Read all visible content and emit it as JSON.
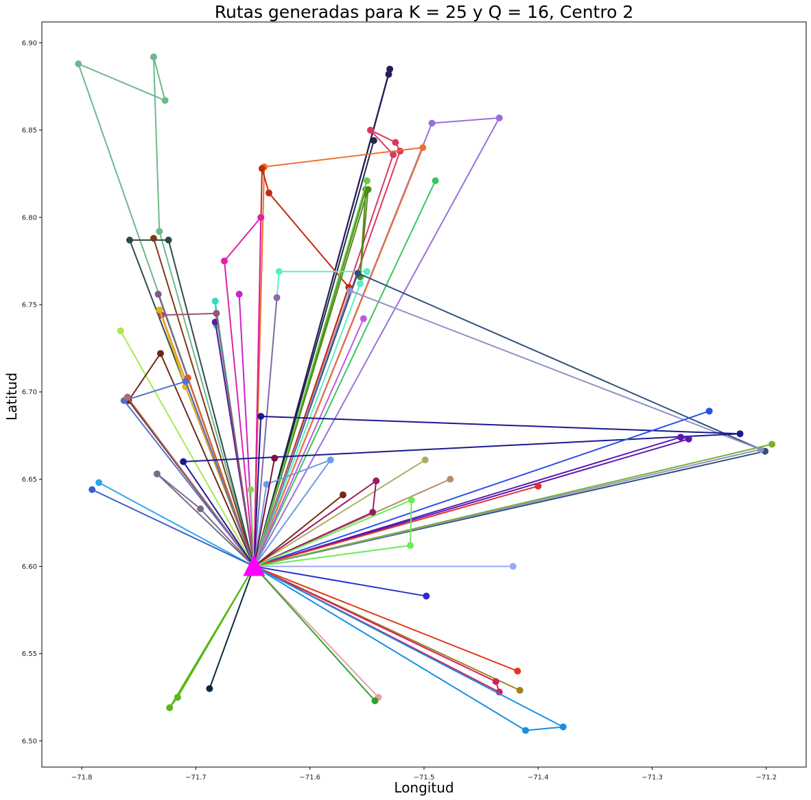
{
  "chart_data": {
    "type": "line",
    "title": "Rutas generadas para K = 25 y Q = 16, Centro 2",
    "xlabel": "Longitud",
    "ylabel": "Latitud",
    "xlim": [
      -71.835,
      -71.165
    ],
    "ylim": [
      6.485,
      6.912
    ],
    "xticks": [
      -71.8,
      -71.7,
      -71.6,
      -71.5,
      -71.4,
      -71.3,
      -71.2
    ],
    "xtick_labels": [
      "−71.8",
      "−71.7",
      "−71.6",
      "−71.5",
      "−71.4",
      "−71.3",
      "−71.2"
    ],
    "yticks": [
      6.5,
      6.55,
      6.6,
      6.65,
      6.7,
      6.75,
      6.8,
      6.85,
      6.9
    ],
    "ytick_labels": [
      "6.50",
      "6.55",
      "6.60",
      "6.65",
      "6.70",
      "6.75",
      "6.80",
      "6.85",
      "6.90"
    ],
    "grid": false,
    "depot": {
      "x": -71.649,
      "y": 6.6,
      "color": "#ff00ff"
    },
    "routes": [
      {
        "color": "#6db88a",
        "points": [
          [
            -71.732,
            6.792
          ],
          [
            -71.737,
            6.892
          ],
          [
            -71.727,
            6.867
          ],
          [
            -71.803,
            6.888
          ]
        ]
      },
      {
        "color": "#2b4a4c",
        "points": [
          [
            -71.758,
            6.787
          ],
          [
            -71.724,
            6.787
          ]
        ]
      },
      {
        "color": "#7a3a16",
        "points": [
          [
            -71.737,
            6.788
          ]
        ]
      },
      {
        "color": "#251d5a",
        "points": [
          [
            -71.53,
            6.885
          ],
          [
            -71.531,
            6.882
          ]
        ]
      },
      {
        "color": "#d9385e",
        "points": [
          [
            -71.521,
            6.838
          ],
          [
            -71.525,
            6.843
          ],
          [
            -71.547,
            6.85
          ],
          [
            -71.527,
            6.836
          ]
        ]
      },
      {
        "color": "#1f2a44",
        "points": [
          [
            -71.544,
            6.844
          ]
        ]
      },
      {
        "color": "#9b6fd8",
        "points": [
          [
            -71.434,
            6.857
          ],
          [
            -71.493,
            6.854
          ]
        ]
      },
      {
        "color": "#f07030",
        "points": [
          [
            -71.501,
            6.84
          ],
          [
            -71.64,
            6.829
          ]
        ]
      },
      {
        "color": "#c22a0a",
        "points": [
          [
            -71.642,
            6.828
          ],
          [
            -71.636,
            6.814
          ],
          [
            -71.566,
            6.76
          ]
        ]
      },
      {
        "color": "#38c85a",
        "points": [
          [
            -71.49,
            6.821
          ]
        ]
      },
      {
        "color": "#4f8a18",
        "points": [
          [
            -71.551,
            6.816
          ],
          [
            -71.556,
            6.766
          ],
          [
            -71.549,
            6.816
          ]
        ]
      },
      {
        "color": "#66cc44",
        "points": [
          [
            -71.55,
            6.821
          ]
        ]
      },
      {
        "color": "#e020a8",
        "points": [
          [
            -71.643,
            6.8
          ],
          [
            -71.675,
            6.775
          ]
        ]
      },
      {
        "color": "#cc22cc",
        "points": [
          [
            -71.662,
            6.756
          ]
        ]
      },
      {
        "color": "#5af0c0",
        "points": [
          [
            -71.627,
            6.769
          ],
          [
            -71.55,
            6.769
          ],
          [
            -71.556,
            6.762
          ]
        ]
      },
      {
        "color": "#8a6aa8",
        "points": [
          [
            -71.629,
            6.754
          ]
        ]
      },
      {
        "color": "#30e0b8",
        "points": [
          [
            -71.683,
            6.752
          ],
          [
            -71.682,
            6.738
          ]
        ]
      },
      {
        "color": "#5a1aa0",
        "points": [
          [
            -71.683,
            6.74
          ]
        ]
      },
      {
        "color": "#a05070",
        "points": [
          [
            -71.73,
            6.744
          ],
          [
            -71.682,
            6.745
          ]
        ]
      },
      {
        "color": "#7a5a8a",
        "points": [
          [
            -71.733,
            6.756
          ]
        ]
      },
      {
        "color": "#e8b018",
        "points": [
          [
            -71.732,
            6.747
          ],
          [
            -71.709,
            6.703
          ]
        ]
      },
      {
        "color": "#e85a20",
        "points": [
          [
            -71.707,
            6.708
          ]
        ]
      },
      {
        "color": "#c058e0",
        "points": [
          [
            -71.553,
            6.742
          ]
        ]
      },
      {
        "color": "#30507a",
        "points": [
          [
            -71.201,
            6.666
          ],
          [
            -71.558,
            6.768
          ]
        ]
      },
      {
        "color": "#9090c8",
        "points": [
          [
            -71.205,
            6.667
          ],
          [
            -71.565,
            6.758
          ]
        ]
      },
      {
        "color": "#a8e850",
        "points": [
          [
            -71.766,
            6.735
          ]
        ]
      },
      {
        "color": "#6a2a1a",
        "points": [
          [
            -71.731,
            6.722
          ],
          [
            -71.759,
            6.695
          ]
        ]
      },
      {
        "color": "#5070d0",
        "points": [
          [
            -71.763,
            6.695
          ],
          [
            -71.709,
            6.706
          ]
        ]
      },
      {
        "color": "#b06a6a",
        "points": [
          [
            -71.76,
            6.697
          ]
        ]
      },
      {
        "color": "#1a1a90",
        "points": [
          [
            -71.643,
            6.686
          ],
          [
            -71.223,
            6.676
          ],
          [
            -71.711,
            6.66
          ]
        ]
      },
      {
        "color": "#2a50e8",
        "points": [
          [
            -71.25,
            6.689
          ]
        ]
      },
      {
        "color": "#5a18b0",
        "points": [
          [
            -71.275,
            6.674
          ],
          [
            -71.268,
            6.673
          ]
        ]
      },
      {
        "color": "#78b030",
        "points": [
          [
            -71.195,
            6.67
          ]
        ]
      },
      {
        "color": "#6a9ae8",
        "points": [
          [
            -71.582,
            6.661
          ],
          [
            -71.638,
            6.647
          ]
        ]
      },
      {
        "color": "#7a1040",
        "points": [
          [
            -71.631,
            6.662
          ]
        ]
      },
      {
        "color": "#a8b060",
        "points": [
          [
            -71.499,
            6.661
          ]
        ]
      },
      {
        "color": "#b09070",
        "points": [
          [
            -71.477,
            6.65
          ]
        ]
      },
      {
        "color": "#7a6a8a",
        "points": [
          [
            -71.734,
            6.653
          ],
          [
            -71.696,
            6.633
          ]
        ]
      },
      {
        "color": "#a01860",
        "points": [
          [
            -71.542,
            6.649
          ],
          [
            -71.545,
            6.631
          ]
        ]
      },
      {
        "color": "#7a2a10",
        "points": [
          [
            -71.571,
            6.641
          ]
        ]
      },
      {
        "color": "#e03030",
        "points": [
          [
            -71.4,
            6.646
          ]
        ]
      },
      {
        "color": "#2aa8e8",
        "points": [
          [
            -71.785,
            6.648
          ]
        ]
      },
      {
        "color": "#3a60c8",
        "points": [
          [
            -71.791,
            6.644
          ]
        ]
      },
      {
        "color": "#90d060",
        "points": [
          [
            -71.652,
            6.644
          ]
        ]
      },
      {
        "color": "#66ee55",
        "points": [
          [
            -71.511,
            6.638
          ],
          [
            -71.512,
            6.612
          ]
        ]
      },
      {
        "color": "#9aa8f8",
        "points": [
          [
            -71.422,
            6.6
          ]
        ]
      },
      {
        "color": "#2a30d0",
        "points": [
          [
            -71.498,
            6.583
          ]
        ]
      },
      {
        "color": "#e03a1a",
        "points": [
          [
            -71.418,
            6.54
          ]
        ]
      },
      {
        "color": "#a08020",
        "points": [
          [
            -71.416,
            6.529
          ]
        ]
      },
      {
        "color": "#d02060",
        "points": [
          [
            -71.437,
            6.534
          ],
          [
            -71.434,
            6.528
          ]
        ]
      },
      {
        "color": "#1890e0",
        "points": [
          [
            -71.411,
            6.506
          ],
          [
            -71.378,
            6.508
          ]
        ]
      },
      {
        "color": "#e8a0a0",
        "points": [
          [
            -71.54,
            6.525
          ]
        ]
      },
      {
        "color": "#30a030",
        "points": [
          [
            -71.543,
            6.523
          ]
        ]
      },
      {
        "color": "#0a2a3a",
        "points": [
          [
            -71.688,
            6.53
          ]
        ]
      },
      {
        "color": "#58b818",
        "points": [
          [
            -71.716,
            6.525
          ],
          [
            -71.723,
            6.519
          ]
        ]
      }
    ]
  }
}
